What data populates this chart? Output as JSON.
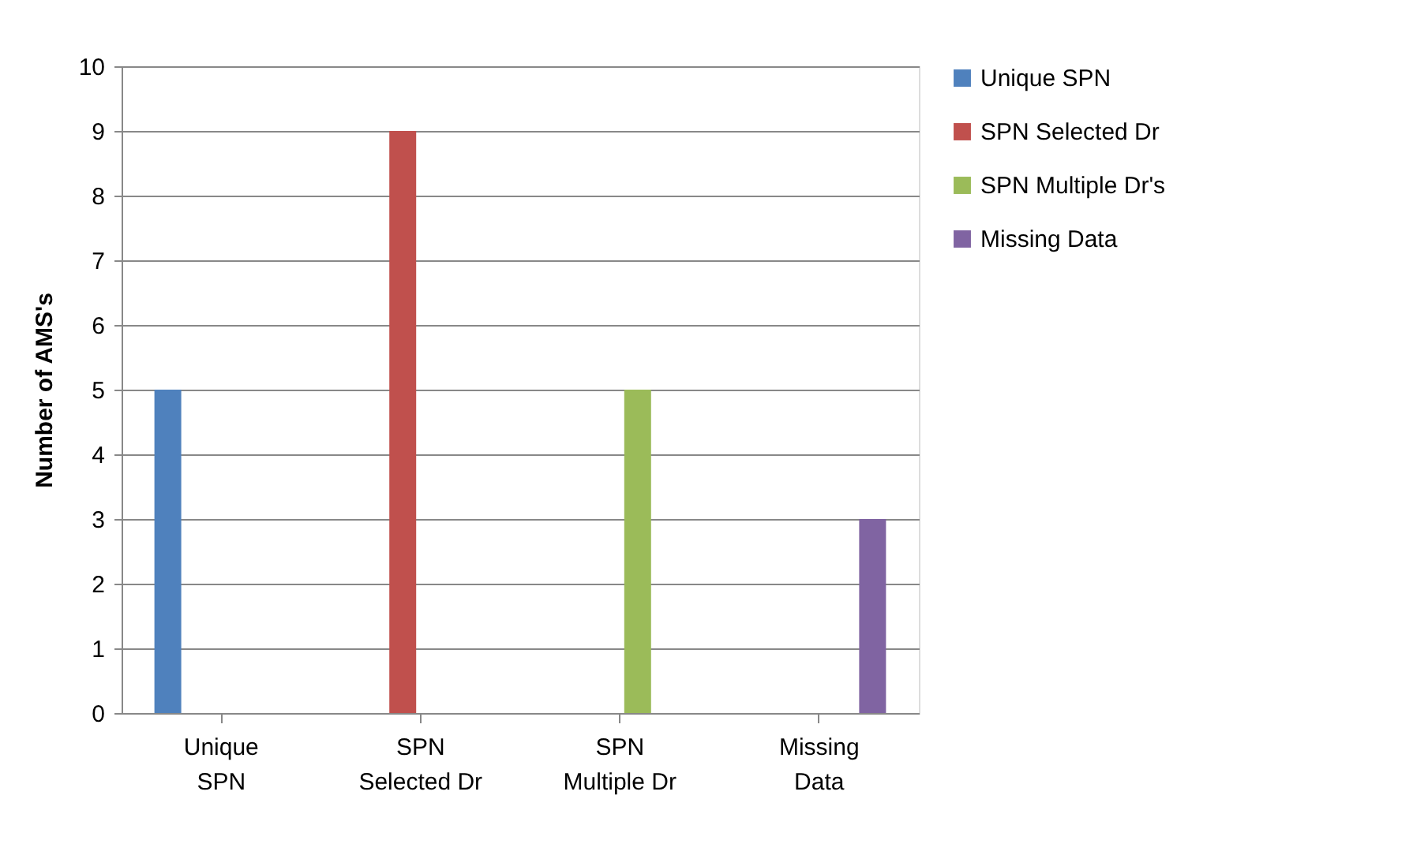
{
  "chart_data": {
    "type": "bar",
    "ylabel": "Number of AMS's",
    "categories": [
      "Unique SPN",
      "SPN Selected Dr",
      "SPN Multiple Dr",
      "Missing Data"
    ],
    "series": [
      {
        "name": "Unique SPN",
        "color": "#4f81bd",
        "values": [
          5,
          null,
          null,
          null
        ]
      },
      {
        "name": "SPN Selected Dr",
        "color": "#c0504d",
        "values": [
          null,
          9,
          null,
          null
        ]
      },
      {
        "name": "SPN Multiple Dr's",
        "color": "#9bbb59",
        "values": [
          null,
          null,
          5,
          null
        ]
      },
      {
        "name": "Missing Data",
        "color": "#8064a2",
        "values": [
          null,
          null,
          null,
          3
        ]
      }
    ],
    "ylim": [
      0,
      10
    ],
    "yticks": [
      0,
      1,
      2,
      3,
      4,
      5,
      6,
      7,
      8,
      9,
      10
    ],
    "grid": "y",
    "legend": "right"
  }
}
